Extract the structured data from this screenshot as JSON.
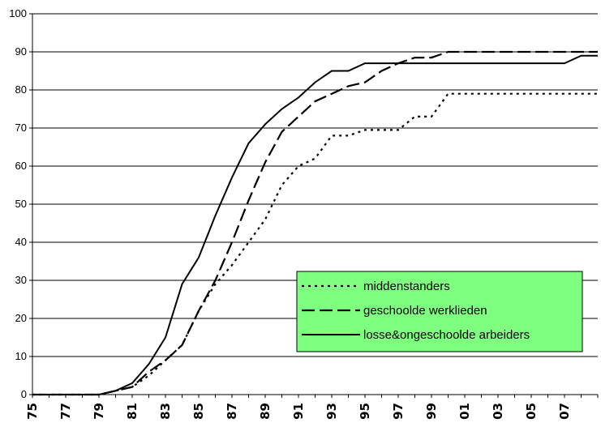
{
  "chart_data": {
    "type": "line",
    "title": "",
    "xlabel": "",
    "ylabel": "",
    "ylim": [
      0,
      100
    ],
    "yticks": [
      0,
      10,
      20,
      30,
      40,
      50,
      60,
      70,
      80,
      90,
      100
    ],
    "grid": "horizontal",
    "legend_position": "lower-right",
    "x": [
      0,
      1,
      2,
      3,
      4,
      5,
      6,
      7,
      8,
      9,
      10,
      11,
      12,
      13,
      14,
      15,
      16,
      17,
      18,
      19,
      20,
      21,
      22,
      23,
      24,
      25,
      26,
      27,
      28,
      29,
      30,
      31,
      32,
      33,
      34
    ],
    "x_tick_labels": [
      "75",
      "77",
      "79",
      "81",
      "83",
      "85",
      "87",
      "89",
      "91",
      "93",
      "95",
      "97",
      "99",
      "01",
      "03",
      "05",
      "07"
    ],
    "series": [
      {
        "name": "middenstanders",
        "style": "dotted",
        "color": "#000000",
        "values": [
          0,
          0,
          0,
          0,
          0,
          1,
          2,
          5,
          9,
          13,
          22,
          29,
          34,
          40,
          46,
          55,
          60,
          62,
          68,
          68,
          69.5,
          69.5,
          69.5,
          73,
          73,
          79,
          79,
          79,
          79,
          79,
          79,
          79,
          79,
          79,
          79
        ]
      },
      {
        "name": "geschoolde werklieden",
        "style": "dashed",
        "color": "#000000",
        "values": [
          0,
          0,
          0,
          0,
          0,
          1,
          2,
          6,
          9,
          13,
          22,
          30,
          40,
          51,
          61,
          69,
          73,
          77,
          79,
          81,
          82,
          85,
          87,
          88.5,
          88.5,
          90,
          90,
          90,
          90,
          90,
          90,
          90,
          90,
          90,
          90
        ]
      },
      {
        "name": "losse&ongeschoolde arbeiders",
        "style": "solid",
        "color": "#000000",
        "values": [
          0,
          0,
          0,
          0,
          0,
          1,
          3,
          8,
          15,
          29,
          36,
          47,
          57,
          66,
          71,
          75,
          78,
          82,
          85,
          85,
          87,
          87,
          87,
          87,
          87,
          87,
          87,
          87,
          87,
          87,
          87,
          87,
          87,
          89,
          89
        ]
      }
    ],
    "legend_background": "#7FFF7F"
  }
}
